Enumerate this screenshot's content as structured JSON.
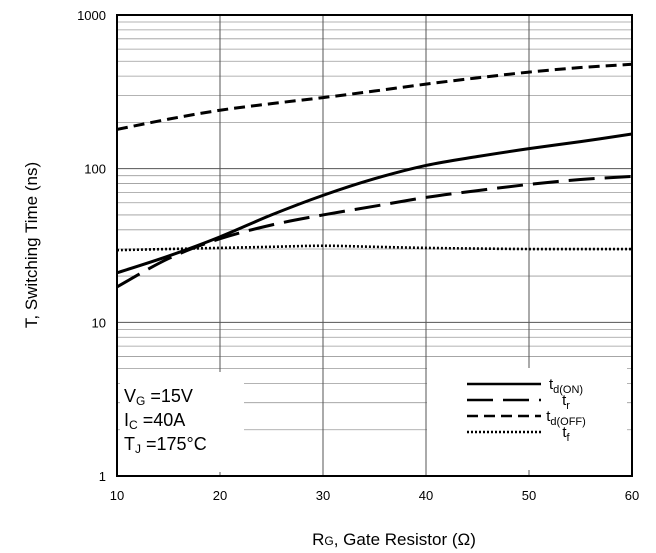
{
  "chart_data": {
    "type": "line",
    "xlabel": "R",
    "xlabel_sub": "G",
    "xlabel_rest": ", Gate Resistor (Ω)",
    "ylabel": "T, Switching Time (ns)",
    "x_ticks": [
      "10",
      "20",
      "30",
      "40",
      "50",
      "60"
    ],
    "y_ticks": [
      "1",
      "10",
      "100",
      "1000"
    ],
    "xlim": [
      10,
      60
    ],
    "ylim": [
      1,
      1000
    ],
    "y_scale": "log",
    "grid": true,
    "legend_position": "bottom-right",
    "conditions": [
      {
        "main": "V",
        "sub": "G",
        "rest": " =15V"
      },
      {
        "main": "I",
        "sub": "C",
        "rest": " =40A"
      },
      {
        "main": "T",
        "sub": "J",
        "rest": " =175°C"
      }
    ],
    "series": [
      {
        "name": "t",
        "name_sub": "d(ON)",
        "style": "solid",
        "x": [
          10,
          15,
          20,
          25,
          30,
          35,
          40,
          45,
          50,
          55,
          60
        ],
        "values": [
          21,
          27,
          36,
          50,
          67,
          86,
          105,
          120,
          135,
          150,
          168
        ]
      },
      {
        "name": "t",
        "name_sub": "r",
        "style": "longdash",
        "x": [
          10,
          15,
          20,
          25,
          30,
          35,
          40,
          45,
          50,
          55,
          60
        ],
        "values": [
          17,
          26,
          35,
          43,
          50,
          57,
          65,
          72,
          79,
          85,
          89
        ]
      },
      {
        "name": "t",
        "name_sub": "d(OFF)",
        "style": "dash",
        "x": [
          10,
          15,
          20,
          25,
          30,
          35,
          40,
          45,
          50,
          55,
          60
        ],
        "values": [
          180,
          210,
          240,
          265,
          290,
          320,
          355,
          390,
          425,
          455,
          478
        ]
      },
      {
        "name": "t",
        "name_sub": "f",
        "style": "dot",
        "x": [
          10,
          15,
          20,
          25,
          30,
          35,
          40,
          45,
          50,
          55,
          60
        ],
        "values": [
          29.5,
          30,
          30.5,
          31,
          31.5,
          31,
          30.5,
          30.2,
          30,
          30,
          30
        ]
      }
    ]
  }
}
